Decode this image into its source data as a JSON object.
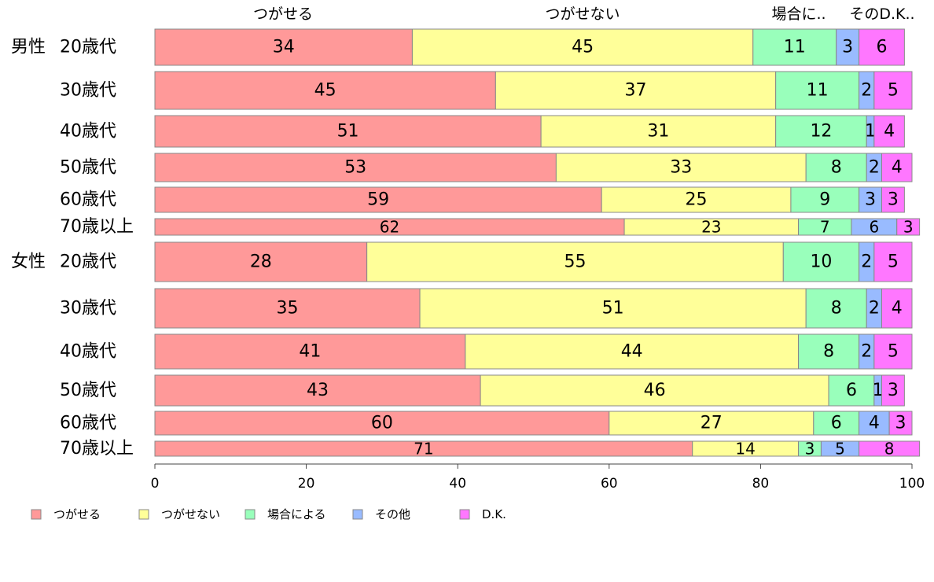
{
  "chart_data": {
    "type": "bar",
    "orientation": "horizontal",
    "stacked": true,
    "title": "",
    "xlabel": "",
    "ylabel": "",
    "xlim": [
      0,
      100
    ],
    "x_ticks": [
      0,
      20,
      40,
      60,
      80,
      100
    ],
    "grid": false,
    "legend_position": "bottom",
    "column_headers": [
      "つがせる",
      "つがせない",
      "場合に..",
      "その",
      "D.K.."
    ],
    "groups": [
      {
        "label": "男性",
        "first_index": 0
      },
      {
        "label": "女性",
        "first_index": 6
      }
    ],
    "categories": [
      "20歳代",
      "30歳代",
      "40歳代",
      "50歳代",
      "60歳代",
      "70歳以上",
      "20歳代",
      "30歳代",
      "40歳代",
      "50歳代",
      "60歳代",
      "70歳以上"
    ],
    "series": [
      {
        "name": "つがせる",
        "color": "#ff9999",
        "values": [
          34,
          45,
          51,
          53,
          59,
          62,
          28,
          35,
          41,
          43,
          60,
          71
        ]
      },
      {
        "name": "つがせない",
        "color": "#ffff99",
        "values": [
          45,
          37,
          31,
          33,
          25,
          23,
          55,
          51,
          44,
          46,
          27,
          14
        ]
      },
      {
        "name": "場合による",
        "color": "#99ffbb",
        "values": [
          11,
          11,
          12,
          8,
          9,
          7,
          10,
          8,
          8,
          6,
          6,
          3
        ]
      },
      {
        "name": "その他",
        "color": "#99bbff",
        "values": [
          3,
          2,
          1,
          2,
          3,
          6,
          2,
          2,
          2,
          1,
          4,
          5
        ]
      },
      {
        "name": "D.K.",
        "color": "#ff77ff",
        "values": [
          6,
          5,
          4,
          4,
          3,
          3,
          5,
          4,
          5,
          3,
          3,
          8
        ]
      }
    ]
  }
}
